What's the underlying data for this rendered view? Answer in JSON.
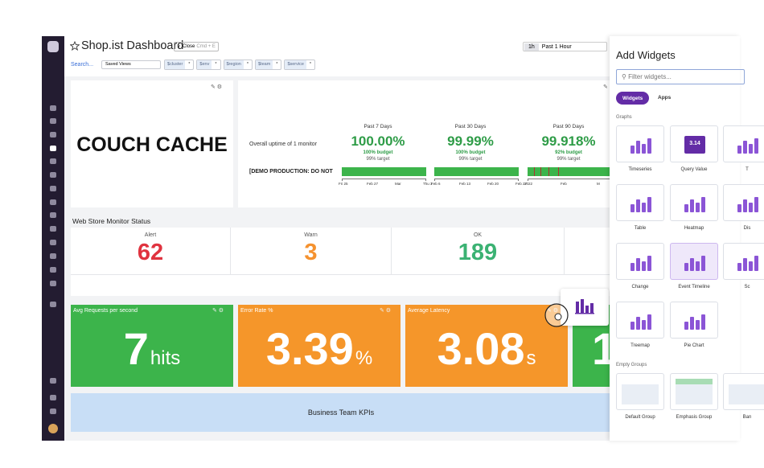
{
  "header": {
    "title": "Shop.ist Dashboard",
    "close": "Close",
    "shortcut": "Cmd + E",
    "time_badge": "1h",
    "time_range": "Past 1 Hour"
  },
  "toolbar": {
    "search": "Search...",
    "saved_views": "Saved Views",
    "variables": [
      {
        "name": "$cluster",
        "value": "*"
      },
      {
        "name": "$env",
        "value": "*"
      },
      {
        "name": "$region",
        "value": "*"
      },
      {
        "name": "$team",
        "value": "*"
      },
      {
        "name": "$service",
        "value": "*"
      }
    ]
  },
  "note_widget": {
    "text": "COUCH CACHE"
  },
  "uptime_widget": {
    "label": "Overall uptime of 1 monitor",
    "monitor": "[DEMO PRODUCTION: DO NOT",
    "periods": [
      {
        "title": "Past 7 Days",
        "value": "100.00%",
        "budget": "100% budget",
        "target": "99% target",
        "axis": [
          "Fri 25",
          "Feb 27",
          "Mar",
          "Thu 3"
        ]
      },
      {
        "title": "Past 30 Days",
        "value": "99.99%",
        "budget": "100% budget",
        "target": "99% target",
        "axis": [
          "Feb 6",
          "Feb 13",
          "Feb 20",
          "Feb 27"
        ]
      },
      {
        "title": "Past 90 Days",
        "value": "99.918%",
        "budget": "92% budget",
        "target": "99% target",
        "axis": [
          "2022",
          "Feb",
          "M"
        ]
      }
    ]
  },
  "monitor_status": {
    "title": "Web Store Monitor Status",
    "cells": [
      {
        "label": "Alert",
        "value": "62",
        "color": "#e0333f"
      },
      {
        "label": "Warn",
        "value": "3",
        "color": "#f5922f"
      },
      {
        "label": "OK",
        "value": "189",
        "color": "#3bb273"
      }
    ]
  },
  "query_values": [
    {
      "title": "Avg Requests per second",
      "value": "7",
      "unit": "hits",
      "color": "#3cb44b"
    },
    {
      "title": "Error Rate %",
      "value": "3.39",
      "unit": "%",
      "color": "#f5962a"
    },
    {
      "title": "Average Latency",
      "value": "3.08",
      "unit": "s",
      "color": "#f5962a"
    },
    {
      "value": "1",
      "color": "#3cb44b"
    }
  ],
  "group_banner": "Business Team KPIs",
  "panel": {
    "title": "Add Widgets",
    "filter_placeholder": "Filter widgets...",
    "tabs": [
      "Widgets",
      "Apps"
    ],
    "sections": [
      {
        "title": "Graphs",
        "items": [
          {
            "name": "Timeseries"
          },
          {
            "name": "Query Value",
            "icon_text": "3.14"
          },
          {
            "name": "T"
          },
          {
            "name": "Table"
          },
          {
            "name": "Heatmap"
          },
          {
            "name": "Dis"
          },
          {
            "name": "Change"
          },
          {
            "name": "Event Timeline"
          },
          {
            "name": "Sc"
          },
          {
            "name": "Treemap"
          },
          {
            "name": "Pie Chart"
          }
        ]
      },
      {
        "title": "Empty Groups",
        "items": [
          {
            "name": "Default Group"
          },
          {
            "name": "Emphasis Group"
          },
          {
            "name": "Ban"
          }
        ]
      }
    ]
  }
}
